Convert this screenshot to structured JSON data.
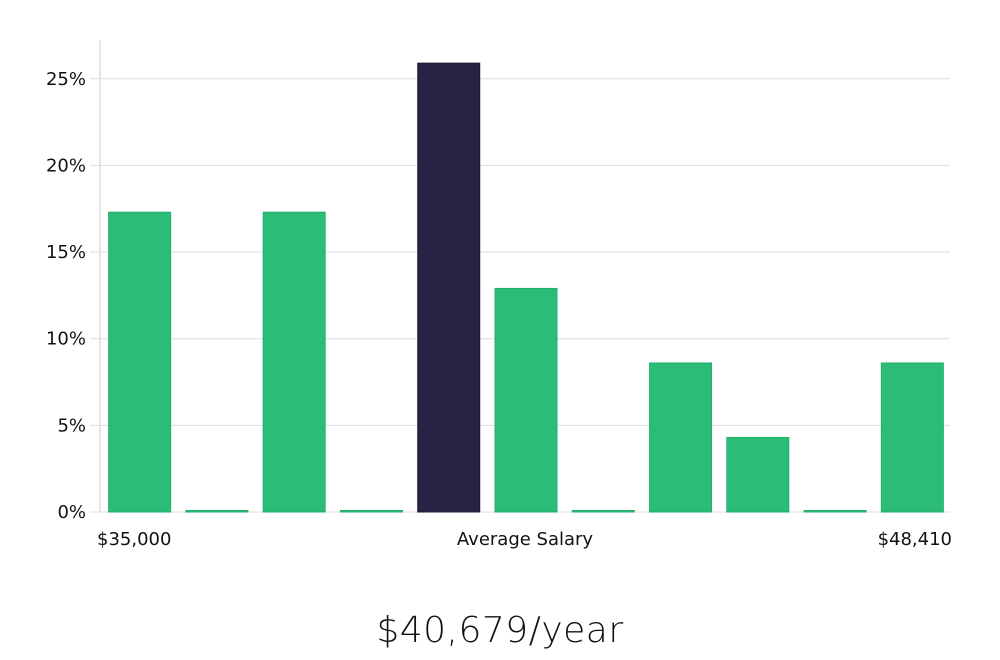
{
  "chart_data": {
    "type": "bar",
    "title": "",
    "xlabel": "Average Salary",
    "ylabel": "",
    "ylim": [
      0,
      27
    ],
    "yticks": [
      0,
      5,
      10,
      15,
      20,
      25
    ],
    "ytick_labels": [
      "0%",
      "5%",
      "10%",
      "15%",
      "20%",
      "25%"
    ],
    "x_range_labels": {
      "min": "$35,000",
      "center": "Average Salary",
      "max": "$48,410"
    },
    "bins": 11,
    "values": [
      17.3,
      0,
      17.3,
      0,
      25.9,
      12.9,
      0,
      8.6,
      4.3,
      0,
      8.6
    ],
    "highlight_index": 4,
    "colors": {
      "bar": "#2bbd77",
      "highlight": "#272345",
      "grid": "#dddddd",
      "axis": "#cccccc"
    }
  },
  "summary": {
    "salary_label": "$40,679/year"
  }
}
